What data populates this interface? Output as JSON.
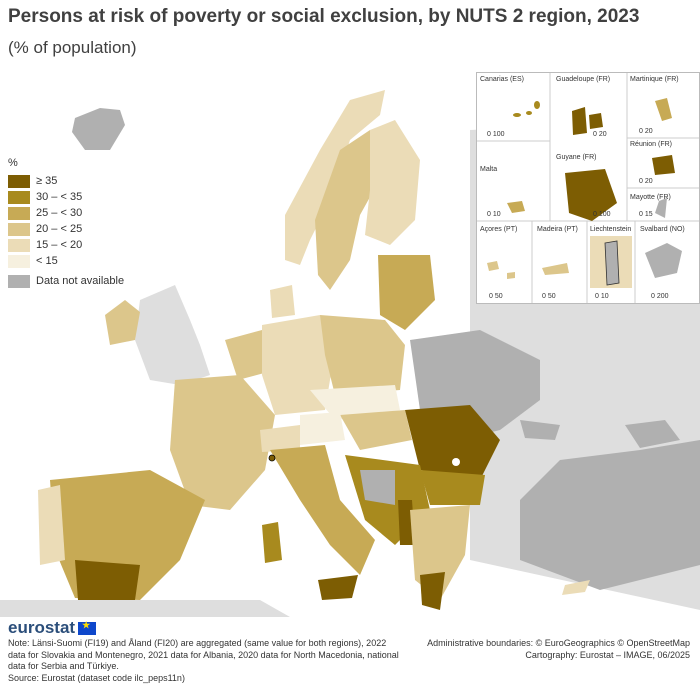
{
  "title": "Persons at risk of poverty or social exclusion, by NUTS 2 region, 2023",
  "subtitle": "(% of population)",
  "legend": {
    "unit": "%",
    "classes": [
      {
        "label": "≥ 35",
        "color": "#7d5d03"
      },
      {
        "label": "30 – < 35",
        "color": "#a88a1e"
      },
      {
        "label": "25 – < 30",
        "color": "#c7aa55"
      },
      {
        "label": "20 – < 25",
        "color": "#dcc68b"
      },
      {
        "label": "15 – < 20",
        "color": "#ebdcb7"
      },
      {
        "label": "< 15",
        "color": "#f6f0df"
      }
    ],
    "na": {
      "label": "Data not available",
      "color": "#b0b0b0"
    }
  },
  "insets": [
    {
      "label": "Canarias (ES)",
      "scale": "0   100"
    },
    {
      "label": "Guadeloupe (FR)",
      "scale": "0  20"
    },
    {
      "label": "Martinique (FR)",
      "scale": "0  20"
    },
    {
      "label": "Réunion (FR)",
      "scale": "0  20"
    },
    {
      "label": "Malta",
      "scale": "0  10"
    },
    {
      "label": "Guyane (FR)",
      "scale": "0   100"
    },
    {
      "label": "Mayotte (FR)",
      "scale": "0  15"
    },
    {
      "label": "Açores (PT)",
      "scale": "0  50"
    },
    {
      "label": "Madeira (PT)",
      "scale": "0   50"
    },
    {
      "label": "Liechtenstein",
      "scale": "0  10"
    },
    {
      "label": "Svalbard (NO)",
      "scale": "0   200"
    }
  ],
  "logo": "eurostat",
  "note": "Note: Länsi-Suomi (FI19) and Åland (FI20) are aggregated (same value for both regions), 2022 data for Slovakia and Montenegro, 2021 data for Albania, 2020 data for North Macedonia, national data for Serbia and Türkiye.",
  "source": "Source: Eurostat (dataset code ilc_peps11n)",
  "credits": {
    "boundaries": "Administrative boundaries: © EuroGeographics © OpenStreetMap",
    "cartography": "Cartography: Eurostat – IMAGE, 06/2025"
  }
}
